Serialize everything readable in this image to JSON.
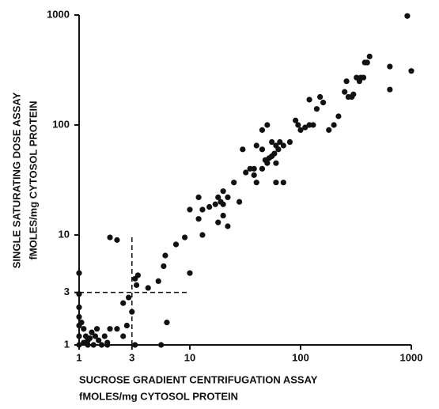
{
  "chart_data": {
    "type": "scatter",
    "color": "#111111",
    "xscale": "log",
    "yscale": "log",
    "xlabel": [
      "SUCROSE GRADIENT CENTRIFUGATION ASSAY",
      "fMOLES/mg CYTOSOL PROTEIN"
    ],
    "ylabel": [
      "SINGLE SATURATING DOSE ASSAY",
      "fMOLES/mg CYTOSOL PROTEIN"
    ],
    "xlim": [
      1,
      1000
    ],
    "ylim": [
      1,
      1000
    ],
    "xticks": [
      1,
      3,
      10,
      100,
      1000
    ],
    "yticks": [
      1,
      3,
      10,
      100,
      1000
    ],
    "dashed_lines": [
      {
        "x": [
          3,
          3
        ],
        "y": [
          1,
          10
        ]
      },
      {
        "x": [
          1,
          10
        ],
        "y": [
          3,
          3
        ]
      }
    ],
    "x": [
      920,
      1000,
      640,
      640,
      420,
      400,
      380,
      370,
      350,
      340,
      320,
      300,
      290,
      270,
      260,
      250,
      220,
      200,
      180,
      160,
      150,
      140,
      120,
      110,
      100,
      95,
      130,
      120,
      90,
      80,
      70,
      65,
      63,
      60,
      58,
      55,
      50,
      45,
      48,
      52,
      55,
      60,
      40,
      45,
      50,
      45,
      38,
      35,
      38,
      32,
      30,
      40,
      60,
      70,
      25,
      28,
      22,
      20,
      20,
      19,
      18,
      20,
      22,
      18,
      17,
      15,
      13,
      12,
      12,
      13,
      10,
      9,
      7.5,
      6,
      5.8,
      5.2,
      4.2,
      3.4,
      3.2,
      3.3,
      10,
      6.2,
      5.5,
      3,
      2.8,
      2.5,
      2.2,
      2.5,
      1.9,
      2.2,
      2.7,
      1,
      1,
      1,
      1,
      1,
      1,
      1,
      1.1,
      1.15,
      1.2,
      1.3,
      1.4,
      1.35,
      1.5,
      1.6,
      1.7,
      1.8,
      1.1,
      1.25,
      1.45,
      1.9,
      1.2,
      1.05,
      3.2,
      1.8
    ],
    "values": [
      980,
      310,
      340,
      210,
      420,
      370,
      370,
      270,
      270,
      250,
      270,
      190,
      180,
      180,
      250,
      200,
      120,
      100,
      90,
      160,
      180,
      140,
      100,
      95,
      90,
      100,
      100,
      170,
      110,
      70,
      65,
      70,
      60,
      65,
      55,
      70,
      45,
      40,
      48,
      50,
      52,
      45,
      65,
      90,
      100,
      60,
      40,
      40,
      35,
      37,
      60,
      30,
      30,
      30,
      30,
      20,
      22,
      19,
      25,
      20,
      22,
      15,
      12,
      13,
      19,
      18,
      17,
      22,
      14,
      10,
      17,
      9.5,
      8.2,
      6.5,
      5.2,
      3.8,
      3.3,
      4.3,
      4,
      3.5,
      4.5,
      1.6,
      1,
      2,
      2.7,
      1.2,
      1.4,
      2.4,
      9.5,
      9,
      1.5,
      4.5,
      2.9,
      2.2,
      1.8,
      1.5,
      1.2,
      1,
      1.4,
      1.2,
      1.1,
      1.3,
      1.2,
      1,
      1.1,
      1,
      1.2,
      1,
      1.05,
      1.15,
      1.4,
      1.4,
      1,
      1.6,
      1,
      1.05
    ]
  }
}
